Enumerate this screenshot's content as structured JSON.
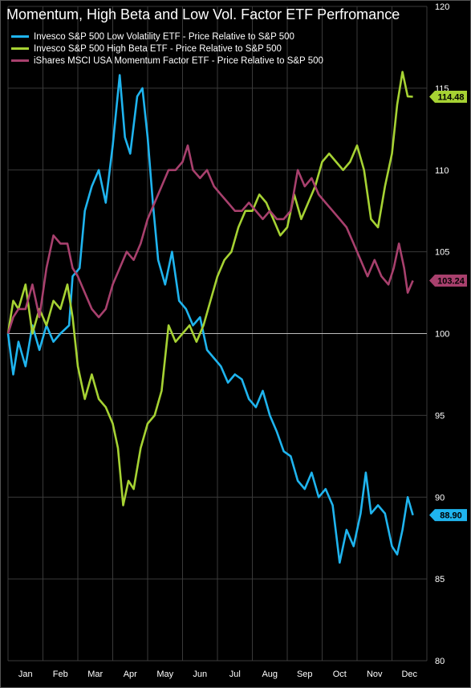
{
  "chart_data": {
    "type": "line",
    "title": "Momentum, High Beta and Low Vol. Factor ETF Perfromance",
    "xlabel": "",
    "ylabel": "",
    "x_tick_labels": [
      "Jan",
      "Feb",
      "Mar",
      "Apr",
      "May",
      "Jun",
      "Jul",
      "Aug",
      "Sep",
      "Oct",
      "Nov",
      "Dec"
    ],
    "y_ticks": [
      80,
      85,
      90,
      95,
      100,
      105,
      110,
      115,
      120
    ],
    "ylim": [
      80,
      120
    ],
    "xlim": [
      0,
      12
    ],
    "reference_line": 100,
    "grid": true,
    "legend_position": "top-left",
    "series": [
      {
        "name": "Invesco S&P 500 Low Volatility ETF - Price Relative to S&P 500",
        "color": "#1fb4ee",
        "last_value": "88.90",
        "points": [
          [
            0.0,
            100.0
          ],
          [
            0.15,
            97.5
          ],
          [
            0.3,
            99.5
          ],
          [
            0.5,
            98.0
          ],
          [
            0.7,
            100.5
          ],
          [
            0.9,
            99.0
          ],
          [
            1.1,
            100.5
          ],
          [
            1.3,
            99.5
          ],
          [
            1.5,
            100.0
          ],
          [
            1.75,
            100.5
          ],
          [
            1.85,
            103.5
          ],
          [
            2.05,
            104.0
          ],
          [
            2.2,
            107.5
          ],
          [
            2.4,
            109.0
          ],
          [
            2.6,
            110.0
          ],
          [
            2.8,
            108.0
          ],
          [
            3.0,
            111.5
          ],
          [
            3.2,
            115.8
          ],
          [
            3.35,
            112.0
          ],
          [
            3.5,
            111.0
          ],
          [
            3.7,
            114.5
          ],
          [
            3.85,
            115.0
          ],
          [
            4.0,
            112.0
          ],
          [
            4.15,
            108.0
          ],
          [
            4.3,
            104.5
          ],
          [
            4.5,
            103.0
          ],
          [
            4.7,
            105.0
          ],
          [
            4.9,
            102.0
          ],
          [
            5.1,
            101.5
          ],
          [
            5.3,
            100.5
          ],
          [
            5.5,
            101.0
          ],
          [
            5.7,
            99.0
          ],
          [
            5.9,
            98.5
          ],
          [
            6.1,
            98.0
          ],
          [
            6.3,
            97.0
          ],
          [
            6.5,
            97.5
          ],
          [
            6.7,
            97.2
          ],
          [
            6.9,
            96.0
          ],
          [
            7.1,
            95.5
          ],
          [
            7.3,
            96.5
          ],
          [
            7.5,
            95.0
          ],
          [
            7.7,
            94.0
          ],
          [
            7.9,
            92.8
          ],
          [
            8.1,
            92.5
          ],
          [
            8.3,
            91.0
          ],
          [
            8.5,
            90.5
          ],
          [
            8.7,
            91.5
          ],
          [
            8.9,
            90.0
          ],
          [
            9.1,
            90.5
          ],
          [
            9.3,
            89.5
          ],
          [
            9.5,
            86.0
          ],
          [
            9.7,
            88.0
          ],
          [
            9.9,
            87.0
          ],
          [
            10.1,
            89.0
          ],
          [
            10.25,
            91.5
          ],
          [
            10.4,
            89.0
          ],
          [
            10.6,
            89.5
          ],
          [
            10.8,
            89.0
          ],
          [
            11.0,
            87.0
          ],
          [
            11.15,
            86.5
          ],
          [
            11.3,
            88.0
          ],
          [
            11.45,
            90.0
          ],
          [
            11.6,
            88.9
          ]
        ]
      },
      {
        "name": "Invesco S&P 500 High Beta ETF - Price Relative to S&P 500",
        "color": "#a6d233",
        "last_value": "114.48",
        "points": [
          [
            0.0,
            100.0
          ],
          [
            0.15,
            102.0
          ],
          [
            0.3,
            101.5
          ],
          [
            0.5,
            103.0
          ],
          [
            0.7,
            100.0
          ],
          [
            0.9,
            101.5
          ],
          [
            1.1,
            100.5
          ],
          [
            1.3,
            102.0
          ],
          [
            1.5,
            101.5
          ],
          [
            1.7,
            103.0
          ],
          [
            1.85,
            101.0
          ],
          [
            2.0,
            98.0
          ],
          [
            2.2,
            96.0
          ],
          [
            2.4,
            97.5
          ],
          [
            2.6,
            96.0
          ],
          [
            2.8,
            95.5
          ],
          [
            3.0,
            94.5
          ],
          [
            3.15,
            93.0
          ],
          [
            3.3,
            89.5
          ],
          [
            3.45,
            91.0
          ],
          [
            3.6,
            90.5
          ],
          [
            3.8,
            93.0
          ],
          [
            4.0,
            94.5
          ],
          [
            4.2,
            95.0
          ],
          [
            4.4,
            96.5
          ],
          [
            4.6,
            100.5
          ],
          [
            4.8,
            99.5
          ],
          [
            5.0,
            100.0
          ],
          [
            5.2,
            100.5
          ],
          [
            5.4,
            99.5
          ],
          [
            5.6,
            100.5
          ],
          [
            5.8,
            102.0
          ],
          [
            6.0,
            103.5
          ],
          [
            6.2,
            104.5
          ],
          [
            6.4,
            105.0
          ],
          [
            6.6,
            106.5
          ],
          [
            6.8,
            107.5
          ],
          [
            7.0,
            107.5
          ],
          [
            7.2,
            108.5
          ],
          [
            7.4,
            108.0
          ],
          [
            7.6,
            107.0
          ],
          [
            7.8,
            106.0
          ],
          [
            8.0,
            106.5
          ],
          [
            8.2,
            108.5
          ],
          [
            8.4,
            107.0
          ],
          [
            8.6,
            108.0
          ],
          [
            8.8,
            109.0
          ],
          [
            9.0,
            110.5
          ],
          [
            9.2,
            111.0
          ],
          [
            9.4,
            110.5
          ],
          [
            9.6,
            110.0
          ],
          [
            9.8,
            110.5
          ],
          [
            10.0,
            111.5
          ],
          [
            10.2,
            110.0
          ],
          [
            10.4,
            107.0
          ],
          [
            10.6,
            106.5
          ],
          [
            10.8,
            109.0
          ],
          [
            11.0,
            111.0
          ],
          [
            11.15,
            114.0
          ],
          [
            11.3,
            116.0
          ],
          [
            11.45,
            114.5
          ],
          [
            11.6,
            114.48
          ]
        ]
      },
      {
        "name": "iShares MSCI USA Momentum Factor ETF - Price Relative to S&P 500",
        "color": "#a8406d",
        "last_value": "103.24",
        "points": [
          [
            0.0,
            100.0
          ],
          [
            0.15,
            101.0
          ],
          [
            0.3,
            101.5
          ],
          [
            0.5,
            101.5
          ],
          [
            0.7,
            103.0
          ],
          [
            0.9,
            101.0
          ],
          [
            1.1,
            104.0
          ],
          [
            1.3,
            106.0
          ],
          [
            1.5,
            105.5
          ],
          [
            1.7,
            105.5
          ],
          [
            1.85,
            104.0
          ],
          [
            2.0,
            103.5
          ],
          [
            2.2,
            102.5
          ],
          [
            2.4,
            101.5
          ],
          [
            2.6,
            101.0
          ],
          [
            2.8,
            101.5
          ],
          [
            3.0,
            103.0
          ],
          [
            3.2,
            104.0
          ],
          [
            3.4,
            105.0
          ],
          [
            3.6,
            104.5
          ],
          [
            3.8,
            105.5
          ],
          [
            4.0,
            107.0
          ],
          [
            4.2,
            108.0
          ],
          [
            4.4,
            109.0
          ],
          [
            4.6,
            110.0
          ],
          [
            4.8,
            110.0
          ],
          [
            5.0,
            110.5
          ],
          [
            5.15,
            111.5
          ],
          [
            5.3,
            110.0
          ],
          [
            5.5,
            109.5
          ],
          [
            5.7,
            110.0
          ],
          [
            5.9,
            109.0
          ],
          [
            6.1,
            108.5
          ],
          [
            6.3,
            108.0
          ],
          [
            6.5,
            107.5
          ],
          [
            6.7,
            107.5
          ],
          [
            6.9,
            108.0
          ],
          [
            7.1,
            107.5
          ],
          [
            7.3,
            107.0
          ],
          [
            7.5,
            107.5
          ],
          [
            7.7,
            107.0
          ],
          [
            7.9,
            107.0
          ],
          [
            8.1,
            107.5
          ],
          [
            8.3,
            110.0
          ],
          [
            8.5,
            109.0
          ],
          [
            8.7,
            109.5
          ],
          [
            8.9,
            108.5
          ],
          [
            9.1,
            108.0
          ],
          [
            9.3,
            107.5
          ],
          [
            9.5,
            107.0
          ],
          [
            9.7,
            106.5
          ],
          [
            9.9,
            105.5
          ],
          [
            10.1,
            104.5
          ],
          [
            10.3,
            103.5
          ],
          [
            10.5,
            104.5
          ],
          [
            10.7,
            103.5
          ],
          [
            10.9,
            103.0
          ],
          [
            11.05,
            104.0
          ],
          [
            11.2,
            105.5
          ],
          [
            11.35,
            104.0
          ],
          [
            11.45,
            102.5
          ],
          [
            11.6,
            103.24
          ]
        ]
      }
    ]
  }
}
